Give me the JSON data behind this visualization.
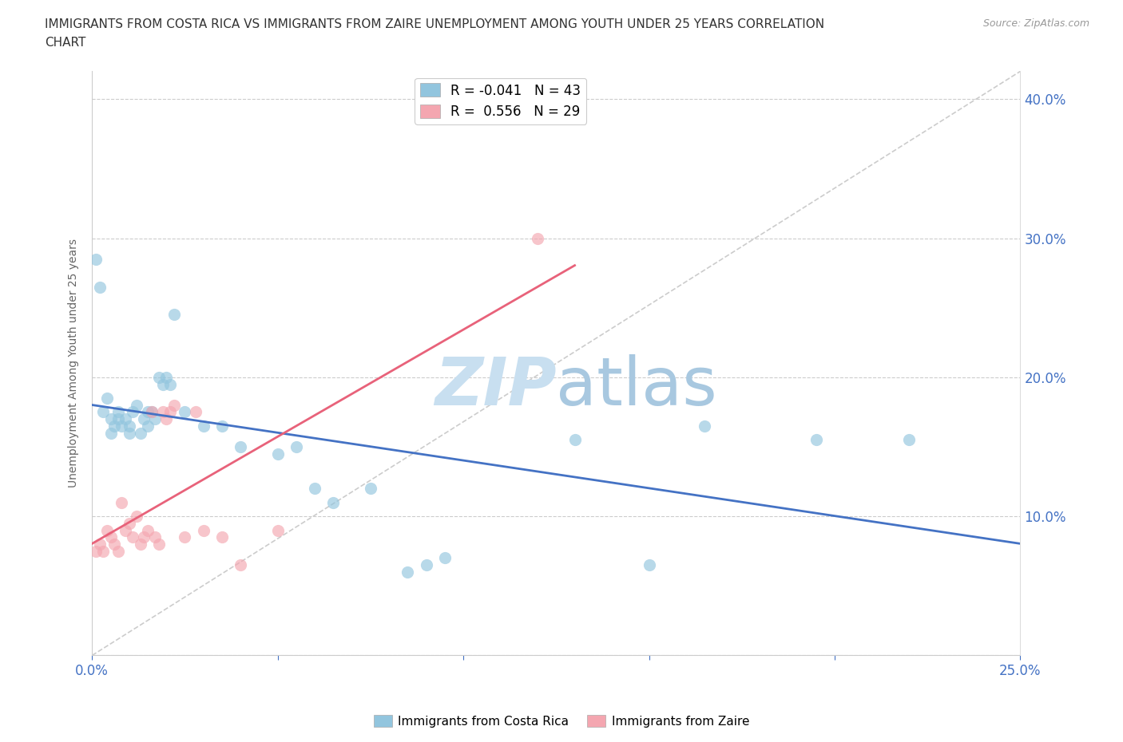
{
  "title_line1": "IMMIGRANTS FROM COSTA RICA VS IMMIGRANTS FROM ZAIRE UNEMPLOYMENT AMONG YOUTH UNDER 25 YEARS CORRELATION",
  "title_line2": "CHART",
  "source": "Source: ZipAtlas.com",
  "ylabel": "Unemployment Among Youth under 25 years",
  "xlim": [
    0.0,
    0.25
  ],
  "ylim": [
    0.0,
    0.42
  ],
  "xticks": [
    0.0,
    0.05,
    0.1,
    0.15,
    0.2,
    0.25
  ],
  "xtick_labels": [
    "0.0%",
    "",
    "",
    "",
    "",
    "25.0%"
  ],
  "yticks": [
    0.0,
    0.1,
    0.2,
    0.3,
    0.4
  ],
  "ytick_labels": [
    "",
    "10.0%",
    "20.0%",
    "30.0%",
    "40.0%"
  ],
  "costa_rica_R": -0.041,
  "costa_rica_N": 43,
  "zaire_R": 0.556,
  "zaire_N": 29,
  "costa_rica_color": "#92C5DE",
  "zaire_color": "#F4A6B0",
  "costa_rica_trend_color": "#4472C4",
  "zaire_trend_color": "#E8627A",
  "diag_color": "#CCCCCC",
  "watermark_color": "#C8DFF0",
  "costa_rica_x": [
    0.001,
    0.002,
    0.003,
    0.004,
    0.005,
    0.005,
    0.006,
    0.007,
    0.007,
    0.008,
    0.009,
    0.01,
    0.01,
    0.011,
    0.012,
    0.013,
    0.014,
    0.015,
    0.015,
    0.016,
    0.017,
    0.018,
    0.019,
    0.02,
    0.021,
    0.022,
    0.025,
    0.03,
    0.035,
    0.04,
    0.05,
    0.055,
    0.06,
    0.065,
    0.075,
    0.085,
    0.09,
    0.095,
    0.13,
    0.15,
    0.165,
    0.195,
    0.22
  ],
  "costa_rica_y": [
    0.285,
    0.265,
    0.175,
    0.185,
    0.17,
    0.16,
    0.165,
    0.17,
    0.175,
    0.165,
    0.17,
    0.165,
    0.16,
    0.175,
    0.18,
    0.16,
    0.17,
    0.175,
    0.165,
    0.175,
    0.17,
    0.2,
    0.195,
    0.2,
    0.195,
    0.245,
    0.175,
    0.165,
    0.165,
    0.15,
    0.145,
    0.15,
    0.12,
    0.11,
    0.12,
    0.06,
    0.065,
    0.07,
    0.155,
    0.065,
    0.165,
    0.155,
    0.155
  ],
  "zaire_x": [
    0.001,
    0.002,
    0.003,
    0.004,
    0.005,
    0.006,
    0.007,
    0.008,
    0.009,
    0.01,
    0.011,
    0.012,
    0.013,
    0.014,
    0.015,
    0.016,
    0.017,
    0.018,
    0.019,
    0.02,
    0.021,
    0.022,
    0.025,
    0.028,
    0.03,
    0.035,
    0.04,
    0.05,
    0.12
  ],
  "zaire_y": [
    0.075,
    0.08,
    0.075,
    0.09,
    0.085,
    0.08,
    0.075,
    0.11,
    0.09,
    0.095,
    0.085,
    0.1,
    0.08,
    0.085,
    0.09,
    0.175,
    0.085,
    0.08,
    0.175,
    0.17,
    0.175,
    0.18,
    0.085,
    0.175,
    0.09,
    0.085,
    0.065,
    0.09,
    0.3
  ]
}
